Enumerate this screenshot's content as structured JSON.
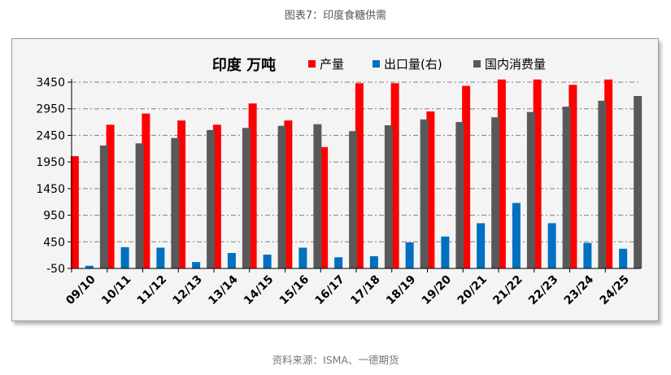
{
  "figure_title": "图表7：印度食糖供需",
  "source_note": "资料来源：ISMA、一德期货",
  "colors": {
    "production": "#ff0000",
    "export": "#0070c0",
    "consumption": "#595959",
    "grid": "#7f7f7f",
    "axis": "#000000"
  },
  "chart_data": {
    "type": "bar",
    "title": "印度 万吨",
    "categories": [
      "09/10",
      "10/11",
      "11/12",
      "12/13",
      "13/14",
      "14/15",
      "15/16",
      "16/17",
      "17/18",
      "18/19",
      "19/20",
      "20/21",
      "21/22",
      "22/23",
      "23/24",
      "24/25"
    ],
    "series": [
      {
        "name": "产量",
        "values": [
          2060,
          2650,
          2860,
          2730,
          2650,
          3050,
          2730,
          2230,
          3430,
          3430,
          2900,
          3380,
          3500,
          3500,
          3400,
          3500
        ]
      },
      {
        "name": "出口量(右)",
        "values": [
          0,
          350,
          340,
          70,
          240,
          210,
          340,
          160,
          180,
          440,
          550,
          800,
          1180,
          800,
          430,
          320
        ]
      },
      {
        "name": "国内消费量",
        "values": [
          2260,
          2300,
          2400,
          2550,
          2590,
          2630,
          2660,
          2530,
          2640,
          2750,
          2700,
          2790,
          2890,
          2990,
          3100,
          3190
        ]
      }
    ],
    "yticks": [
      "3450",
      "2950",
      "2450",
      "1950",
      "1450",
      "950",
      "450",
      "-50"
    ],
    "ylim": [
      -50,
      3450
    ],
    "grid": true,
    "legend": "top"
  }
}
